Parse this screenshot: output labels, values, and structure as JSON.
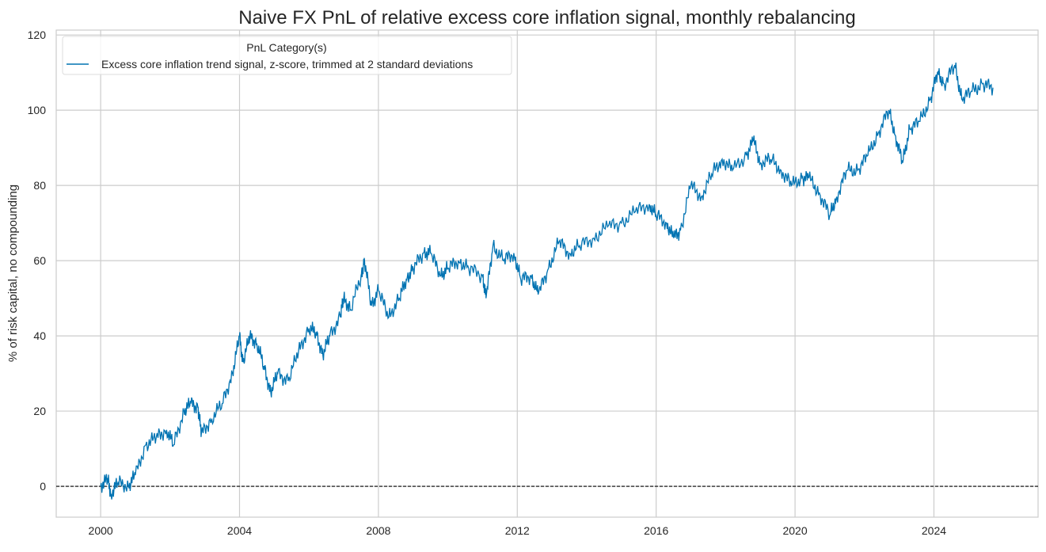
{
  "chart_data": {
    "type": "line",
    "title": "Naive FX PnL of relative excess core inflation signal, monthly rebalancing",
    "xlabel": "",
    "ylabel": "% of risk capital, no compounding",
    "xlim": [
      1998.72,
      2027.0
    ],
    "ylim": [
      -8.2,
      121.3
    ],
    "xticks": [
      2000,
      2004,
      2008,
      2012,
      2016,
      2020,
      2024
    ],
    "yticks": [
      0,
      20,
      40,
      60,
      80,
      100,
      120
    ],
    "grid": true,
    "zero_line": true,
    "legend": {
      "title": "PnL Category(s)",
      "placement": "top-left"
    },
    "series": [
      {
        "name": "Excess core inflation trend signal, z-score, trimmed at 2 standard deviations",
        "color": "#0173b2",
        "x": [
          2000.0,
          2000.2,
          2000.3,
          2000.5,
          2000.8,
          2001.0,
          2001.3,
          2001.6,
          2001.9,
          2002.1,
          2002.4,
          2002.6,
          2002.8,
          2002.9,
          2003.2,
          2003.5,
          2003.8,
          2004.0,
          2004.1,
          2004.3,
          2004.5,
          2004.7,
          2004.9,
          2005.1,
          2005.4,
          2005.7,
          2006.0,
          2006.2,
          2006.4,
          2006.6,
          2006.9,
          2007.0,
          2007.2,
          2007.5,
          2007.6,
          2007.8,
          2008.0,
          2008.3,
          2008.6,
          2008.8,
          2009.0,
          2009.3,
          2009.5,
          2009.8,
          2010.0,
          2010.3,
          2010.6,
          2011.0,
          2011.1,
          2011.3,
          2011.6,
          2011.9,
          2012.1,
          2012.4,
          2012.6,
          2012.9,
          2013.2,
          2013.5,
          2013.8,
          2014.2,
          2014.6,
          2015.0,
          2015.4,
          2015.8,
          2016.0,
          2016.3,
          2016.5,
          2016.7,
          2017.0,
          2017.3,
          2017.6,
          2017.9,
          2018.2,
          2018.6,
          2018.8,
          2019.0,
          2019.3,
          2019.6,
          2019.9,
          2020.2,
          2020.4,
          2020.7,
          2021.0,
          2021.2,
          2021.5,
          2021.8,
          2022.1,
          2022.4,
          2022.7,
          2022.9,
          2023.1,
          2023.3,
          2023.6,
          2023.9,
          2024.1,
          2024.3,
          2024.6,
          2024.8,
          2025.1,
          2025.4,
          2025.7
        ],
        "y": [
          0,
          2,
          -2,
          1,
          0,
          3,
          11,
          13,
          15,
          11,
          20,
          22,
          21,
          14,
          18,
          22,
          30,
          40,
          33,
          40,
          38,
          32,
          25,
          30,
          28,
          36,
          42,
          41,
          35,
          40,
          45,
          50,
          47,
          56,
          60,
          48,
          52,
          45,
          50,
          55,
          58,
          62,
          62,
          56,
          58,
          60,
          58,
          56,
          50,
          64,
          60,
          62,
          55,
          56,
          51,
          58,
          65,
          62,
          64,
          66,
          69,
          70,
          73,
          75,
          72,
          70,
          66,
          68,
          80,
          77,
          83,
          87,
          84,
          88,
          92,
          86,
          87,
          84,
          80,
          82,
          82,
          78,
          72,
          77,
          84,
          84,
          88,
          94,
          100,
          93,
          86,
          95,
          97,
          103,
          110,
          107,
          112,
          103,
          105,
          107,
          106
        ]
      }
    ]
  }
}
